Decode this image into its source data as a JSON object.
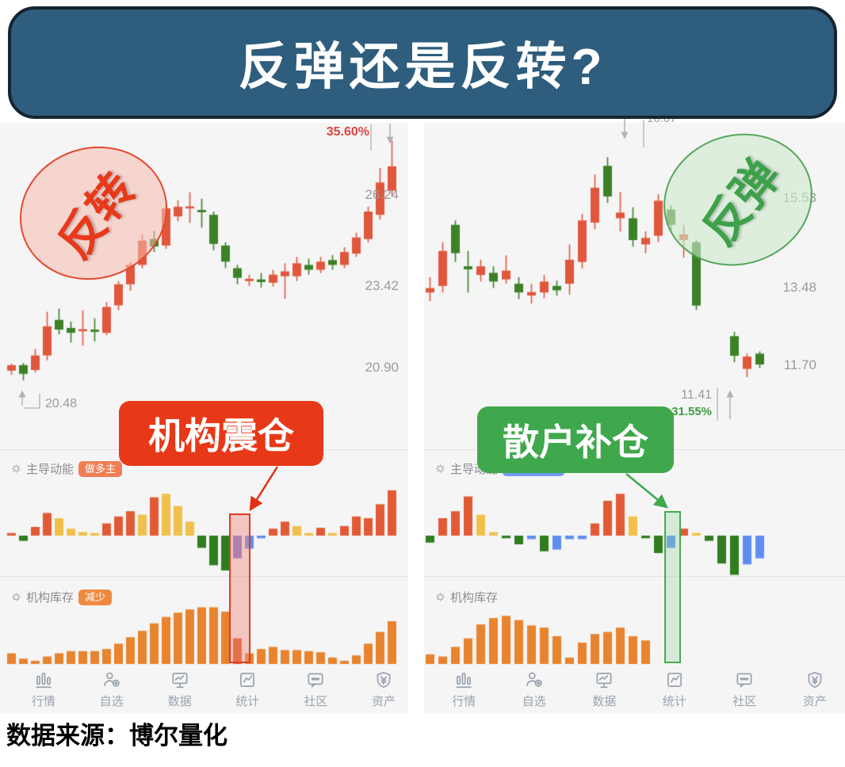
{
  "title": "反弹还是反转?",
  "caption": "数据来源：博尔量化",
  "colors": {
    "banner_bg": "#2e5d7d",
    "banner_border": "#162430",
    "candle_up": "#e0573c",
    "candle_down": "#3c8127",
    "bar_red": "#e25a35",
    "bar_yellow": "#f0c04a",
    "bar_green": "#2f7d1f",
    "bar_blue": "#5f8ef0",
    "bar_purple": "#7b77cf",
    "inventory_orange": "#e8832e",
    "inventory_highlight": "#dd5a23",
    "red_accent": "#e8391a",
    "green_accent": "#3fa84c",
    "gray_text": "#9b9b9b",
    "nav_gray": "#9aa3ad"
  },
  "nav": {
    "items": [
      {
        "label": "行情",
        "icon": "quotes-bars-icon"
      },
      {
        "label": "自选",
        "icon": "watchlist-user-icon"
      },
      {
        "label": "数据",
        "icon": "data-monitor-icon"
      },
      {
        "label": "统计",
        "icon": "stats-chart-icon"
      },
      {
        "label": "社区",
        "icon": "community-chat-icon"
      },
      {
        "label": "资产",
        "icon": "assets-shield-icon"
      }
    ]
  },
  "left": {
    "oval_label": "反转",
    "callout_label": "机构震仓",
    "pct_label": "35.60%",
    "low_label": "20.48",
    "price_labels": [
      "26.24",
      "23.42",
      "20.90"
    ],
    "momentum": {
      "label": "主导动能",
      "badge": "做多主"
    },
    "inventory": {
      "label": "机构库存",
      "badge": "减少"
    }
  },
  "right": {
    "oval_label": "反弹",
    "callout_label": "散户补仓",
    "peak_label": "16.07",
    "low_label": "11.41",
    "pct_label": "-31.55%",
    "price_labels": [
      "15.53",
      "13.48",
      "11.70"
    ],
    "momentum": {
      "label": "主导动能",
      "badge": ""
    },
    "inventory": {
      "label": "机构库存",
      "badge": ""
    }
  },
  "chart_data": [
    {
      "id": "left-k",
      "type": "candlestick",
      "title": "左图K线（反转案例）",
      "ylim": [
        19.3,
        28.3
      ],
      "axis_labels": [
        26.24,
        23.42,
        20.9
      ],
      "annotations": [
        {
          "text": "35.60%",
          "meaning": "区间最大涨幅，指向最后一根K线高点"
        },
        {
          "text": "20.48",
          "meaning": "起始低点"
        }
      ],
      "candles": [
        [
          20.78,
          20.95,
          20.65,
          21.0,
          "u"
        ],
        [
          20.68,
          20.95,
          20.48,
          21.02,
          "d"
        ],
        [
          20.8,
          21.25,
          20.72,
          21.45,
          "u"
        ],
        [
          21.25,
          22.15,
          21.1,
          22.6,
          "u"
        ],
        [
          22.05,
          22.35,
          21.9,
          22.7,
          "d"
        ],
        [
          21.95,
          22.1,
          21.65,
          22.3,
          "d"
        ],
        [
          22.0,
          22.06,
          21.55,
          22.65,
          "u"
        ],
        [
          21.98,
          22.05,
          21.68,
          22.4,
          "d"
        ],
        [
          21.95,
          22.75,
          21.88,
          22.9,
          "u"
        ],
        [
          22.8,
          23.45,
          22.65,
          23.55,
          "u"
        ],
        [
          23.45,
          24.05,
          23.25,
          24.15,
          "u"
        ],
        [
          24.05,
          24.8,
          23.95,
          25.0,
          "u"
        ],
        [
          24.62,
          24.85,
          24.45,
          25.1,
          "d"
        ],
        [
          24.65,
          25.8,
          24.55,
          25.9,
          "u"
        ],
        [
          25.55,
          25.85,
          25.4,
          26.05,
          "u"
        ],
        [
          25.8,
          25.86,
          25.35,
          26.3,
          "u"
        ],
        [
          25.68,
          25.75,
          25.2,
          26.1,
          "d"
        ],
        [
          24.7,
          25.6,
          24.5,
          25.7,
          "d"
        ],
        [
          24.15,
          24.65,
          23.95,
          24.75,
          "d"
        ],
        [
          23.65,
          23.95,
          23.45,
          24.05,
          "d"
        ],
        [
          23.55,
          23.62,
          23.4,
          23.75,
          "u"
        ],
        [
          23.52,
          23.6,
          23.35,
          23.8,
          "d"
        ],
        [
          23.5,
          23.75,
          23.38,
          23.9,
          "u"
        ],
        [
          23.7,
          23.85,
          23.0,
          24.1,
          "u"
        ],
        [
          23.7,
          24.1,
          23.55,
          24.3,
          "u"
        ],
        [
          23.9,
          24.05,
          23.75,
          24.25,
          "d"
        ],
        [
          23.9,
          24.15,
          23.8,
          24.3,
          "u"
        ],
        [
          24.05,
          24.2,
          23.9,
          24.35,
          "d"
        ],
        [
          24.05,
          24.45,
          23.95,
          24.6,
          "u"
        ],
        [
          24.4,
          24.9,
          24.3,
          25.05,
          "u"
        ],
        [
          24.85,
          25.7,
          24.75,
          25.85,
          "u"
        ],
        [
          25.6,
          26.6,
          25.45,
          27.05,
          "u"
        ],
        [
          26.35,
          27.1,
          26.2,
          27.9,
          "u"
        ]
      ]
    },
    {
      "id": "left-momentum",
      "type": "bar",
      "title": "主导动能（左）",
      "zero_line": true,
      "highlight_index": 19,
      "values": [
        3,
        -6,
        10,
        26,
        20,
        8,
        4,
        3,
        14,
        22,
        28,
        24,
        44,
        48,
        34,
        16,
        -14,
        -34,
        -40,
        -26,
        -15,
        -3,
        8,
        16,
        11,
        3,
        9,
        3,
        11,
        22,
        20,
        36,
        52
      ],
      "colors": [
        "r",
        "g",
        "r",
        "r",
        "y",
        "y",
        "y",
        "y",
        "r",
        "r",
        "r",
        "y",
        "r",
        "y",
        "y",
        "y",
        "g",
        "g",
        "g",
        "p",
        "b",
        "b",
        "r",
        "r",
        "y",
        "y",
        "r",
        "y",
        "r",
        "r",
        "r",
        "r",
        "r"
      ]
    },
    {
      "id": "left-inventory",
      "type": "bar",
      "title": "机构库存（左）",
      "highlight_index": 19,
      "values": [
        10,
        5,
        3,
        7,
        10,
        12,
        12,
        12,
        14,
        19,
        25,
        31,
        38,
        44,
        48,
        51,
        53,
        53,
        49,
        24,
        10,
        14,
        16,
        13,
        13,
        12,
        11,
        6,
        3,
        8,
        19,
        30,
        40
      ]
    },
    {
      "id": "right-k",
      "type": "candlestick",
      "title": "右图K线（反弹案例）",
      "ylim": [
        11.0,
        17.2
      ],
      "axis_labels": [
        15.53,
        13.48,
        11.7
      ],
      "annotations": [
        {
          "text": "16.07",
          "meaning": "前高标注（被标题遮挡一半）"
        },
        {
          "text": "11.41",
          "meaning": "最低点"
        },
        {
          "text": "-31.55%",
          "meaning": "区间最大跌幅"
        }
      ],
      "candles": [
        [
          13.35,
          13.45,
          13.15,
          13.7,
          "u"
        ],
        [
          13.5,
          14.3,
          13.35,
          14.5,
          "u"
        ],
        [
          14.25,
          14.9,
          14.05,
          15.0,
          "d"
        ],
        [
          13.88,
          13.95,
          13.35,
          14.3,
          "d"
        ],
        [
          13.75,
          13.95,
          13.6,
          14.1,
          "u"
        ],
        [
          13.6,
          13.8,
          13.45,
          13.95,
          "d"
        ],
        [
          13.65,
          13.85,
          13.55,
          14.2,
          "u"
        ],
        [
          13.35,
          13.55,
          13.2,
          13.7,
          "d"
        ],
        [
          13.28,
          13.36,
          13.1,
          13.55,
          "u"
        ],
        [
          13.35,
          13.6,
          13.22,
          13.75,
          "u"
        ],
        [
          13.4,
          13.5,
          13.28,
          13.62,
          "d"
        ],
        [
          13.55,
          14.1,
          13.3,
          14.45,
          "u"
        ],
        [
          14.05,
          15.0,
          13.9,
          15.15,
          "u"
        ],
        [
          14.95,
          15.75,
          14.8,
          16.05,
          "u"
        ],
        [
          15.55,
          16.25,
          15.4,
          16.45,
          "d"
        ],
        [
          15.05,
          15.18,
          14.75,
          15.65,
          "u"
        ],
        [
          14.55,
          15.05,
          14.4,
          15.3,
          "d"
        ],
        [
          14.45,
          14.6,
          14.25,
          14.75,
          "u"
        ],
        [
          14.65,
          15.45,
          14.5,
          15.6,
          "u"
        ],
        [
          14.9,
          15.25,
          14.75,
          15.35,
          "d"
        ],
        [
          14.55,
          14.68,
          14.15,
          14.9,
          "u"
        ],
        [
          13.05,
          14.5,
          12.95,
          14.55,
          "d"
        ],
        null,
        null,
        [
          11.9,
          12.35,
          11.75,
          12.45,
          "d"
        ],
        [
          11.6,
          11.88,
          11.41,
          11.95,
          "u"
        ],
        [
          11.7,
          11.95,
          11.62,
          12.0,
          "d"
        ]
      ]
    },
    {
      "id": "right-momentum",
      "type": "bar",
      "title": "主导动能（右）",
      "zero_line": true,
      "highlight_index": 19,
      "values": [
        -8,
        20,
        28,
        45,
        24,
        4,
        -3,
        -10,
        -4,
        -18,
        -16,
        -4,
        -4,
        14,
        40,
        48,
        22,
        -3,
        -20,
        -14,
        8,
        3,
        -6,
        -32,
        -45,
        -33,
        -26
      ],
      "colors": [
        "g",
        "r",
        "r",
        "r",
        "y",
        "y",
        "g",
        "g",
        "b",
        "g",
        "b",
        "b",
        "b",
        "r",
        "r",
        "r",
        "y",
        "g",
        "g",
        "b",
        "r",
        "y",
        "g",
        "g",
        "g",
        "b",
        "b"
      ]
    },
    {
      "id": "right-inventory",
      "type": "bar",
      "title": "机构库存（右）",
      "highlight_index": 19,
      "values": [
        9,
        7,
        16,
        24,
        37,
        43,
        45,
        41,
        36,
        34,
        26,
        6,
        20,
        28,
        30,
        34,
        26,
        22,
        0,
        0,
        0,
        0,
        0,
        0,
        0,
        0,
        0
      ]
    }
  ]
}
